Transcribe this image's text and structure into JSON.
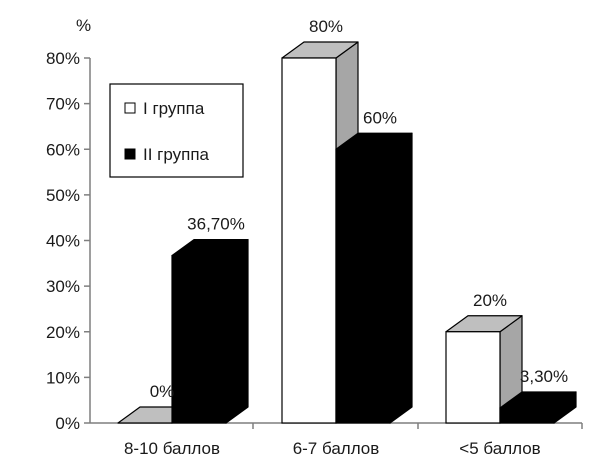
{
  "chart_data": {
    "type": "bar",
    "unit_label": "%",
    "categories": [
      "8-10 баллов",
      "6-7 баллов",
      "<5 баллов"
    ],
    "series": [
      {
        "name": "I группа",
        "values": [
          0,
          80,
          20
        ],
        "labels": [
          "0%",
          "80%",
          "20%"
        ],
        "color": "#ffffff",
        "side_color": "#a6a6a6",
        "top_color": "#bfbfbf"
      },
      {
        "name": "II группа",
        "values": [
          36.7,
          60,
          3.3
        ],
        "labels": [
          "36,70%",
          "60%",
          "3,30%"
        ],
        "color": "#000000",
        "side_color": "#000000",
        "top_color": "#000000"
      }
    ],
    "ylim": [
      0,
      80
    ],
    "yticks": [
      "0%",
      "10%",
      "20%",
      "30%",
      "40%",
      "50%",
      "60%",
      "70%",
      "80%"
    ],
    "grid": false,
    "legend_position": "top-left",
    "style": "3d-bar"
  }
}
